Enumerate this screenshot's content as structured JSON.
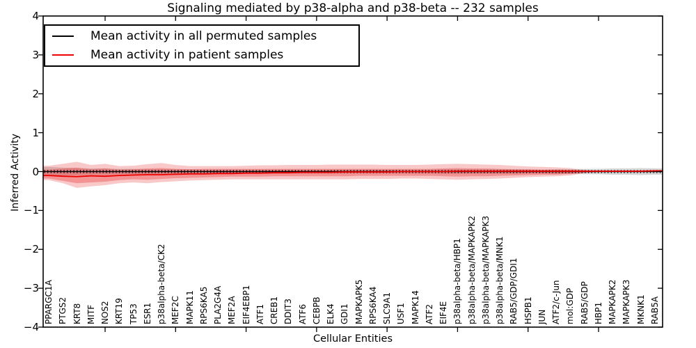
{
  "figure": {
    "background": "#ffffff",
    "frame_color": "#000000"
  },
  "chart_data": {
    "type": "line",
    "title": "Signaling mediated by p38-alpha and p38-beta -- 232 samples",
    "xlabel": "Cellular Entities",
    "ylabel": "Inferred Activity",
    "ylim": [
      -4,
      4
    ],
    "yticks": [
      4,
      3,
      2,
      1,
      0,
      -1,
      -2,
      -3,
      -4
    ],
    "ytick_labels": [
      "4",
      "3",
      "2",
      "1",
      "0",
      "−1",
      "−2",
      "−3",
      "−4"
    ],
    "x_major_tick_indices": [
      4,
      9,
      14,
      19,
      24,
      29,
      34,
      39
    ],
    "grid": false,
    "legend_position": "upper left",
    "categories": [
      "PPARGC1A",
      "PTGS2",
      "KRT8",
      "MITF",
      "NOS2",
      "KRT19",
      "TP53",
      "ESR1",
      "p38alpha-beta/CK2",
      "MEF2C",
      "MAPK11",
      "RPS6KA5",
      "PLA2G4A",
      "MEF2A",
      "EIF4EBP1",
      "ATF1",
      "CREB1",
      "DDIT3",
      "ATF6",
      "CEBPB",
      "ELK4",
      "GDI1",
      "MAPKAPK5",
      "RPS6KA4",
      "SLC9A1",
      "USF1",
      "MAPK14",
      "ATF2",
      "EIF4E",
      "p38alpha-beta/HBP1",
      "p38alpha-beta/MAPKAPK2",
      "p38alpha-beta/MAPKAPK3",
      "p38alpha-beta/MNK1",
      "RAB5/GDP/GDI1",
      "HSPB1",
      "JUN",
      "ATF2/c-Jun",
      "mol:GDP",
      "RAB5/GDP",
      "HBP1",
      "MAPKAPK2",
      "MAPKAPK3",
      "MKNK1",
      "RAB5A"
    ],
    "series": [
      {
        "name": "Mean activity in all permuted samples",
        "color": "#000000",
        "marker": "tick",
        "values": [
          0,
          0,
          0,
          0,
          0,
          0,
          0,
          0,
          0,
          0,
          0,
          0,
          0,
          0,
          0,
          0,
          0,
          0,
          0,
          0,
          0,
          0,
          0,
          0,
          0,
          0,
          0,
          0,
          0,
          0,
          0,
          0,
          0,
          0,
          0,
          0,
          0,
          0,
          0,
          0,
          0,
          0,
          0,
          0
        ]
      },
      {
        "name": "Mean activity in patient samples",
        "color": "#ee0000",
        "marker": "none",
        "values": [
          -0.1,
          -0.12,
          -0.13,
          -0.11,
          -0.12,
          -0.1,
          -0.09,
          -0.08,
          -0.08,
          -0.07,
          -0.06,
          -0.06,
          -0.05,
          -0.05,
          -0.04,
          -0.04,
          -0.03,
          -0.03,
          -0.02,
          -0.02,
          -0.02,
          -0.01,
          -0.01,
          -0.01,
          -0.01,
          0,
          0,
          0,
          0,
          0.01,
          0.01,
          0.01,
          0.01,
          0.01,
          0.01,
          0.01,
          0.01,
          0.01,
          0.01,
          0.01,
          0.01,
          0.01,
          0.01,
          0.02
        ]
      }
    ],
    "bands": [
      {
        "name": "permuted-samples-std-band",
        "color": "rgba(125,125,125,0.32)",
        "top": [
          0.12,
          0.1,
          0.09,
          0.08,
          0.08,
          0.07,
          0.07,
          0.06,
          0.06,
          0.06,
          0.06,
          0.05,
          0.05,
          0.05,
          0.05,
          0.05,
          0.05,
          0.05,
          0.05,
          0.05,
          0.05,
          0.05,
          0.05,
          0.05,
          0.05,
          0.05,
          0.05,
          0.05,
          0.06,
          0.06,
          0.06,
          0.06,
          0.06,
          0.06,
          0.05,
          0.05,
          0.06,
          0.06,
          0.07,
          0.07,
          0.08,
          0.08,
          0.09,
          0.08
        ],
        "bottom": [
          -0.12,
          -0.1,
          -0.09,
          -0.08,
          -0.08,
          -0.07,
          -0.07,
          -0.06,
          -0.06,
          -0.06,
          -0.06,
          -0.05,
          -0.05,
          -0.05,
          -0.05,
          -0.05,
          -0.05,
          -0.05,
          -0.05,
          -0.05,
          -0.05,
          -0.05,
          -0.05,
          -0.05,
          -0.05,
          -0.05,
          -0.05,
          -0.05,
          -0.06,
          -0.06,
          -0.06,
          -0.06,
          -0.06,
          -0.06,
          -0.05,
          -0.05,
          -0.06,
          -0.06,
          -0.07,
          -0.07,
          -0.08,
          -0.08,
          -0.09,
          -0.08
        ]
      },
      {
        "name": "patient-samples-std-outer-band",
        "color": "rgba(235,60,60,0.28)",
        "top": [
          0.15,
          0.2,
          0.25,
          0.17,
          0.2,
          0.14,
          0.15,
          0.19,
          0.22,
          0.17,
          0.14,
          0.14,
          0.14,
          0.14,
          0.15,
          0.16,
          0.16,
          0.17,
          0.17,
          0.17,
          0.18,
          0.18,
          0.18,
          0.18,
          0.17,
          0.17,
          0.17,
          0.18,
          0.19,
          0.2,
          0.19,
          0.18,
          0.17,
          0.15,
          0.13,
          0.12,
          0.11,
          0.09,
          0.04,
          0.01,
          0.01,
          0.01,
          0.01,
          0.01
        ],
        "bottom": [
          -0.22,
          -0.3,
          -0.42,
          -0.38,
          -0.35,
          -0.3,
          -0.28,
          -0.3,
          -0.27,
          -0.25,
          -0.23,
          -0.22,
          -0.21,
          -0.2,
          -0.2,
          -0.2,
          -0.2,
          -0.2,
          -0.2,
          -0.2,
          -0.2,
          -0.2,
          -0.19,
          -0.19,
          -0.19,
          -0.18,
          -0.18,
          -0.19,
          -0.2,
          -0.21,
          -0.2,
          -0.19,
          -0.18,
          -0.16,
          -0.14,
          -0.13,
          -0.12,
          -0.1,
          -0.04,
          -0.01,
          -0.01,
          -0.01,
          -0.01,
          -0.01
        ]
      },
      {
        "name": "patient-samples-std-inner-band",
        "color": "rgba(235,60,60,0.38)",
        "top": [
          0.05,
          0.08,
          0.1,
          0.06,
          0.08,
          0.05,
          0.06,
          0.08,
          0.09,
          0.07,
          0.06,
          0.07,
          0.07,
          0.07,
          0.07,
          0.07,
          0.07,
          0.07,
          0.07,
          0.07,
          0.07,
          0.07,
          0.07,
          0.07,
          0.07,
          0.07,
          0.07,
          0.07,
          0.08,
          0.09,
          0.08,
          0.08,
          0.07,
          0.06,
          0.06,
          0.05,
          0.05,
          0.04,
          0.02,
          0.01,
          0.01,
          0.01,
          0.01,
          0.01
        ],
        "bottom": [
          -0.18,
          -0.24,
          -0.3,
          -0.28,
          -0.26,
          -0.22,
          -0.2,
          -0.21,
          -0.19,
          -0.17,
          -0.16,
          -0.15,
          -0.14,
          -0.13,
          -0.13,
          -0.13,
          -0.12,
          -0.12,
          -0.12,
          -0.12,
          -0.12,
          -0.12,
          -0.11,
          -0.11,
          -0.11,
          -0.11,
          -0.11,
          -0.11,
          -0.12,
          -0.13,
          -0.12,
          -0.12,
          -0.11,
          -0.1,
          -0.09,
          -0.08,
          -0.08,
          -0.06,
          -0.02,
          -0.01,
          -0.01,
          -0.01,
          -0.01,
          -0.01
        ]
      }
    ]
  }
}
